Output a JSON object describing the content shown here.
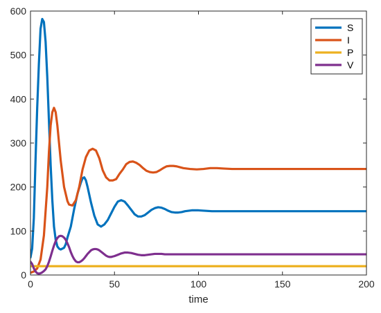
{
  "chart_data": {
    "type": "line",
    "title": "",
    "xlabel": "time",
    "ylabel": "",
    "xlim": [
      0,
      200
    ],
    "ylim": [
      0,
      600
    ],
    "xticks": [
      0,
      50,
      100,
      150,
      200
    ],
    "yticks": [
      0,
      100,
      200,
      300,
      400,
      500,
      600
    ],
    "grid": false,
    "legend": {
      "position": "top-right"
    },
    "series": [
      {
        "name": "S",
        "color": "#0072BD",
        "points": [
          [
            0,
            40
          ],
          [
            1,
            60
          ],
          [
            2,
            130
          ],
          [
            3,
            260
          ],
          [
            4,
            380
          ],
          [
            5,
            480
          ],
          [
            6,
            560
          ],
          [
            7,
            582
          ],
          [
            8,
            575
          ],
          [
            9,
            530
          ],
          [
            10,
            450
          ],
          [
            11,
            350
          ],
          [
            12,
            250
          ],
          [
            13,
            170
          ],
          [
            14,
            110
          ],
          [
            15,
            80
          ],
          [
            16,
            65
          ],
          [
            17,
            60
          ],
          [
            18,
            58
          ],
          [
            19,
            60
          ],
          [
            20,
            62
          ],
          [
            21,
            70
          ],
          [
            22,
            85
          ],
          [
            24,
            110
          ],
          [
            26,
            150
          ],
          [
            28,
            185
          ],
          [
            30,
            210
          ],
          [
            31,
            220
          ],
          [
            32,
            222
          ],
          [
            33,
            215
          ],
          [
            34,
            200
          ],
          [
            36,
            165
          ],
          [
            38,
            135
          ],
          [
            40,
            115
          ],
          [
            42,
            110
          ],
          [
            44,
            115
          ],
          [
            46,
            125
          ],
          [
            48,
            140
          ],
          [
            50,
            155
          ],
          [
            52,
            167
          ],
          [
            54,
            170
          ],
          [
            56,
            167
          ],
          [
            58,
            158
          ],
          [
            60,
            148
          ],
          [
            62,
            138
          ],
          [
            64,
            133
          ],
          [
            66,
            133
          ],
          [
            68,
            136
          ],
          [
            70,
            142
          ],
          [
            72,
            148
          ],
          [
            74,
            152
          ],
          [
            76,
            154
          ],
          [
            78,
            153
          ],
          [
            80,
            150
          ],
          [
            82,
            146
          ],
          [
            84,
            143
          ],
          [
            86,
            142
          ],
          [
            88,
            142
          ],
          [
            90,
            143
          ],
          [
            92,
            145
          ],
          [
            94,
            146
          ],
          [
            96,
            147
          ],
          [
            98,
            147
          ],
          [
            100,
            147
          ],
          [
            104,
            146
          ],
          [
            108,
            145
          ],
          [
            112,
            145
          ],
          [
            116,
            145
          ],
          [
            120,
            145
          ],
          [
            130,
            145
          ],
          [
            140,
            145
          ],
          [
            150,
            145
          ],
          [
            160,
            145
          ],
          [
            170,
            145
          ],
          [
            180,
            145
          ],
          [
            190,
            145
          ],
          [
            200,
            145
          ]
        ]
      },
      {
        "name": "I",
        "color": "#D95319",
        "points": [
          [
            0,
            5
          ],
          [
            2,
            8
          ],
          [
            4,
            15
          ],
          [
            6,
            35
          ],
          [
            8,
            90
          ],
          [
            10,
            200
          ],
          [
            11,
            280
          ],
          [
            12,
            340
          ],
          [
            13,
            370
          ],
          [
            14,
            380
          ],
          [
            15,
            370
          ],
          [
            16,
            340
          ],
          [
            17,
            300
          ],
          [
            18,
            260
          ],
          [
            20,
            200
          ],
          [
            22,
            168
          ],
          [
            23,
            160
          ],
          [
            25,
            158
          ],
          [
            27,
            170
          ],
          [
            29,
            200
          ],
          [
            31,
            240
          ],
          [
            33,
            268
          ],
          [
            35,
            283
          ],
          [
            37,
            287
          ],
          [
            39,
            283
          ],
          [
            41,
            265
          ],
          [
            43,
            238
          ],
          [
            45,
            222
          ],
          [
            47,
            215
          ],
          [
            49,
            215
          ],
          [
            51,
            218
          ],
          [
            53,
            230
          ],
          [
            55,
            240
          ],
          [
            57,
            252
          ],
          [
            59,
            257
          ],
          [
            61,
            258
          ],
          [
            63,
            255
          ],
          [
            65,
            250
          ],
          [
            67,
            243
          ],
          [
            69,
            237
          ],
          [
            71,
            234
          ],
          [
            73,
            233
          ],
          [
            75,
            234
          ],
          [
            77,
            238
          ],
          [
            79,
            243
          ],
          [
            81,
            247
          ],
          [
            83,
            248
          ],
          [
            85,
            248
          ],
          [
            87,
            247
          ],
          [
            89,
            245
          ],
          [
            91,
            243
          ],
          [
            95,
            241
          ],
          [
            99,
            240
          ],
          [
            103,
            241
          ],
          [
            107,
            243
          ],
          [
            111,
            243
          ],
          [
            115,
            242
          ],
          [
            120,
            241
          ],
          [
            130,
            241
          ],
          [
            140,
            241
          ],
          [
            150,
            241
          ],
          [
            160,
            241
          ],
          [
            170,
            241
          ],
          [
            180,
            241
          ],
          [
            190,
            241
          ],
          [
            200,
            241
          ]
        ]
      },
      {
        "name": "P",
        "color": "#EDB120",
        "points": [
          [
            0,
            20
          ],
          [
            2,
            20
          ],
          [
            5,
            20
          ],
          [
            10,
            20
          ],
          [
            20,
            20
          ],
          [
            40,
            20
          ],
          [
            60,
            20
          ],
          [
            80,
            20
          ],
          [
            100,
            20
          ],
          [
            120,
            20
          ],
          [
            140,
            20
          ],
          [
            160,
            20
          ],
          [
            180,
            20
          ],
          [
            200,
            20
          ]
        ]
      },
      {
        "name": "V",
        "color": "#7E2F8E",
        "points": [
          [
            0,
            30
          ],
          [
            1,
            25
          ],
          [
            2,
            15
          ],
          [
            3,
            8
          ],
          [
            4,
            4
          ],
          [
            5,
            3
          ],
          [
            6,
            4
          ],
          [
            7,
            6
          ],
          [
            8,
            9
          ],
          [
            9,
            13
          ],
          [
            10,
            20
          ],
          [
            11,
            30
          ],
          [
            12,
            42
          ],
          [
            13,
            55
          ],
          [
            14,
            67
          ],
          [
            15,
            77
          ],
          [
            16,
            84
          ],
          [
            17,
            88
          ],
          [
            18,
            89
          ],
          [
            19,
            88
          ],
          [
            20,
            85
          ],
          [
            21,
            80
          ],
          [
            22,
            72
          ],
          [
            23,
            63
          ],
          [
            24,
            52
          ],
          [
            25,
            43
          ],
          [
            26,
            36
          ],
          [
            27,
            31
          ],
          [
            28,
            29
          ],
          [
            29,
            29
          ],
          [
            30,
            31
          ],
          [
            31,
            34
          ],
          [
            32,
            38
          ],
          [
            33,
            43
          ],
          [
            34,
            48
          ],
          [
            35,
            52
          ],
          [
            36,
            56
          ],
          [
            37,
            58
          ],
          [
            38,
            59
          ],
          [
            39,
            59
          ],
          [
            40,
            58
          ],
          [
            41,
            56
          ],
          [
            42,
            53
          ],
          [
            43,
            50
          ],
          [
            44,
            47
          ],
          [
            45,
            44
          ],
          [
            46,
            42
          ],
          [
            47,
            41
          ],
          [
            48,
            41
          ],
          [
            49,
            42
          ],
          [
            50,
            43
          ],
          [
            52,
            46
          ],
          [
            54,
            49
          ],
          [
            56,
            51
          ],
          [
            58,
            51
          ],
          [
            60,
            50
          ],
          [
            62,
            48
          ],
          [
            64,
            46
          ],
          [
            66,
            45
          ],
          [
            68,
            45
          ],
          [
            70,
            46
          ],
          [
            72,
            47
          ],
          [
            74,
            48
          ],
          [
            76,
            48
          ],
          [
            78,
            48
          ],
          [
            80,
            47
          ],
          [
            84,
            47
          ],
          [
            88,
            47
          ],
          [
            92,
            47
          ],
          [
            96,
            47
          ],
          [
            100,
            47
          ],
          [
            110,
            47
          ],
          [
            120,
            47
          ],
          [
            130,
            47
          ],
          [
            140,
            47
          ],
          [
            150,
            47
          ],
          [
            160,
            47
          ],
          [
            170,
            47
          ],
          [
            180,
            47
          ],
          [
            190,
            47
          ],
          [
            200,
            47
          ]
        ]
      }
    ]
  }
}
